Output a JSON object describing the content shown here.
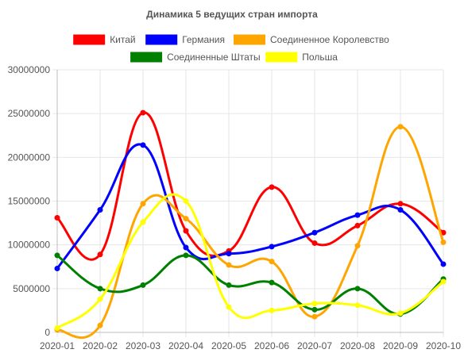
{
  "chart_data": {
    "type": "line",
    "title": "Динамика 5 ведущих стран импорта",
    "x": [
      "2020-01",
      "2020-02",
      "2020-03",
      "2020-04",
      "2020-05",
      "2020-06",
      "2020-07",
      "2020-08",
      "2020-09",
      "2020-10"
    ],
    "ylim": [
      0,
      30000000
    ],
    "yticks": [
      "0",
      "5000000",
      "10000000",
      "15000000",
      "20000000",
      "25000000",
      "30000000"
    ],
    "grid": true,
    "legend": "top",
    "curve": "smooth",
    "series": [
      {
        "name": "Китай",
        "color": "#ff0000",
        "values": [
          13100000,
          8900000,
          25100000,
          11600000,
          9300000,
          16600000,
          10200000,
          12200000,
          14700000,
          11400000
        ]
      },
      {
        "name": "Германия",
        "color": "#0000ff",
        "values": [
          7300000,
          14000000,
          21400000,
          9700000,
          9000000,
          9800000,
          11400000,
          13400000,
          14000000,
          7800000
        ]
      },
      {
        "name": "Соединенное Королевство",
        "color": "#ffa500",
        "values": [
          300000,
          800000,
          14700000,
          13000000,
          7700000,
          8100000,
          1800000,
          9900000,
          23500000,
          10300000
        ]
      },
      {
        "name": "Соединенные Штаты",
        "color": "#008000",
        "values": [
          8800000,
          5000000,
          5400000,
          8800000,
          5400000,
          5700000,
          2600000,
          5000000,
          2100000,
          6100000
        ]
      },
      {
        "name": "Польша",
        "color": "#ffff00",
        "values": [
          500000,
          3800000,
          12600000,
          15000000,
          2900000,
          2500000,
          3300000,
          3100000,
          2200000,
          5800000
        ]
      }
    ]
  }
}
